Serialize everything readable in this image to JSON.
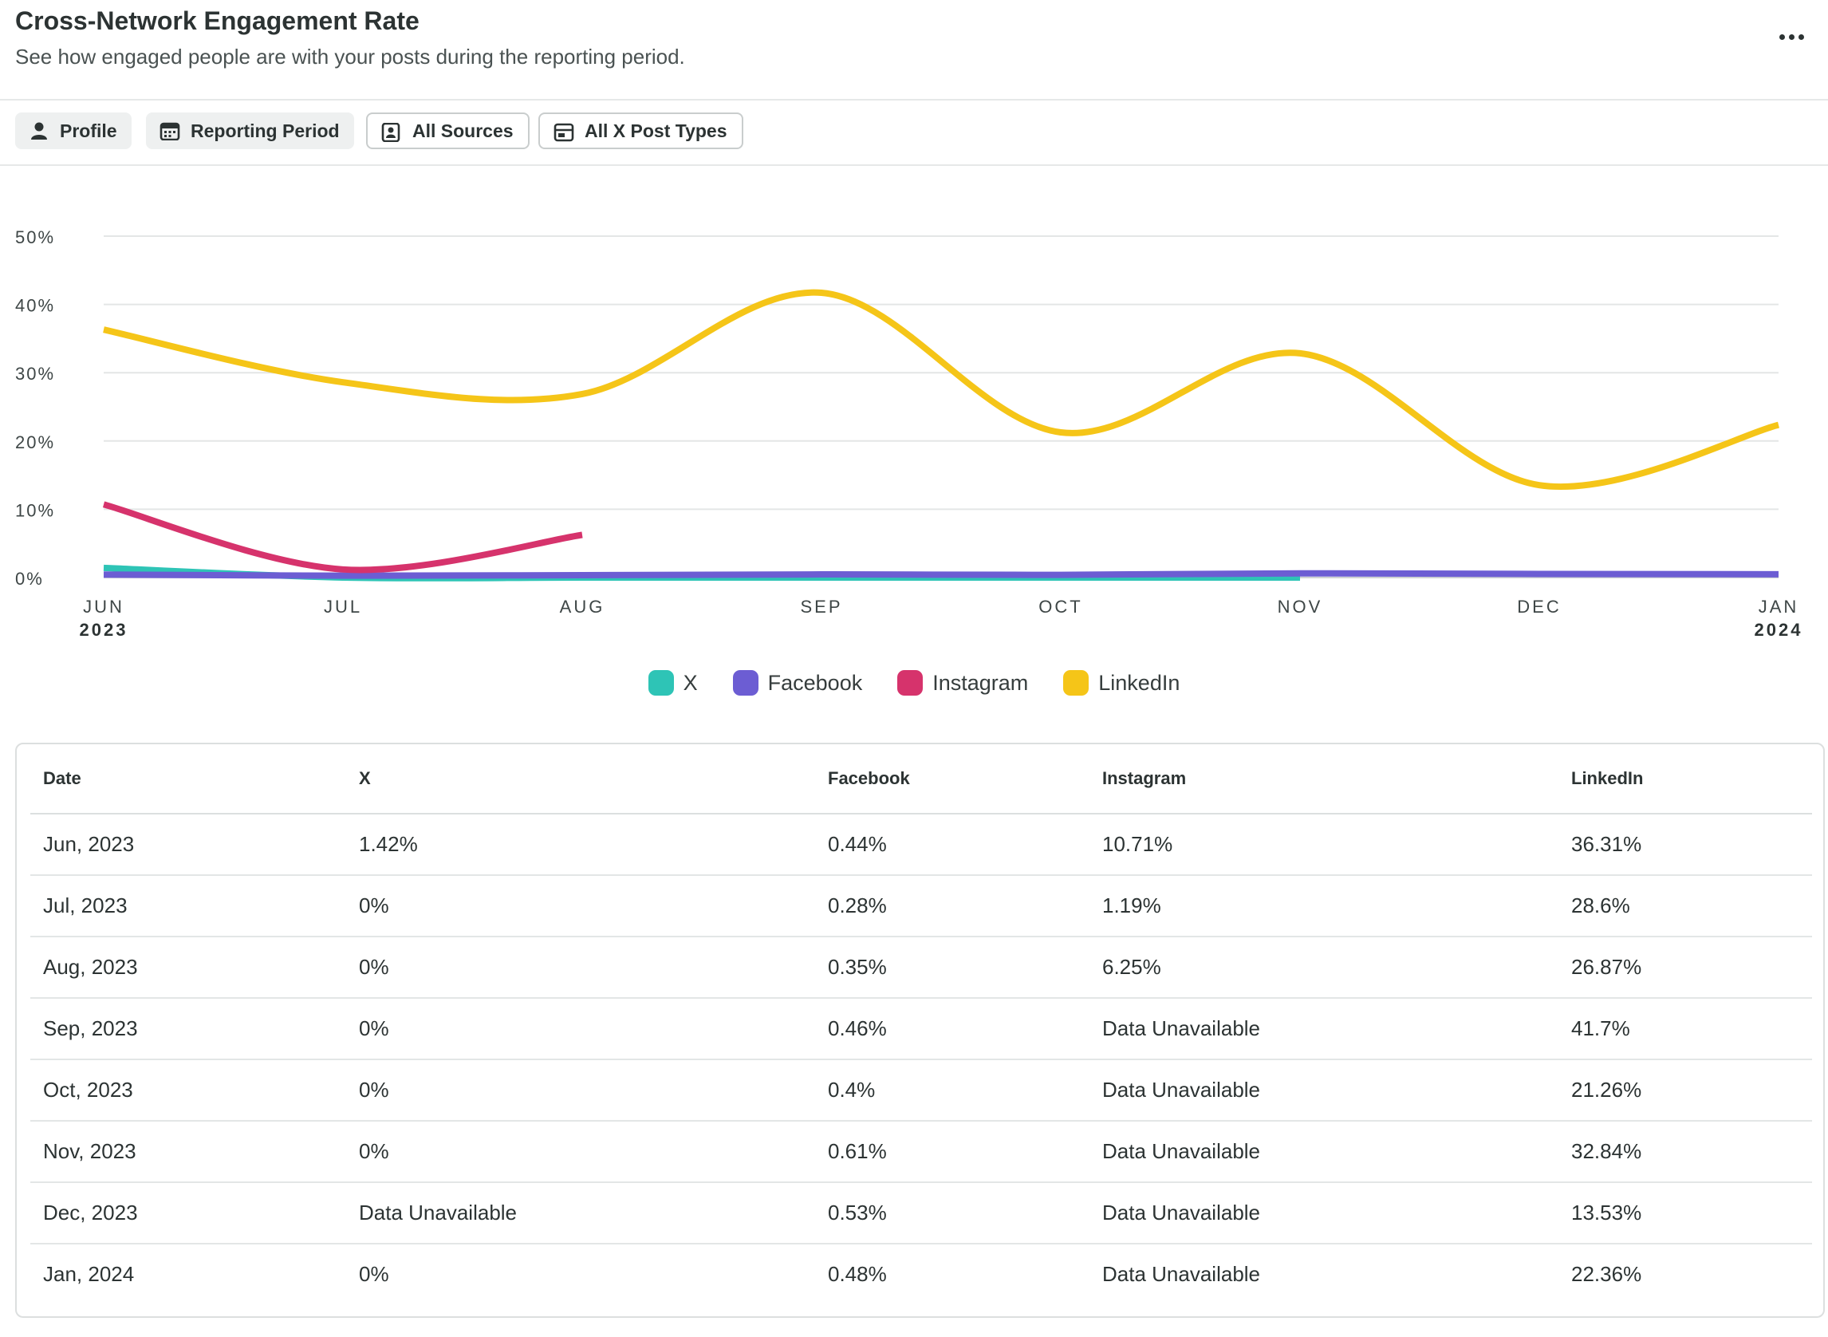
{
  "header": {
    "title": "Cross-Network Engagement Rate",
    "subtitle": "See how engaged people are with your posts during the reporting period."
  },
  "filters": [
    {
      "label": "Profile",
      "icon": "person-icon",
      "style": "filled"
    },
    {
      "label": "Reporting Period",
      "icon": "calendar-icon",
      "style": "filled"
    },
    {
      "label": "All Sources",
      "icon": "contact-card-icon",
      "style": "outline"
    },
    {
      "label": "All X Post Types",
      "icon": "post-type-icon",
      "style": "outline"
    }
  ],
  "chart_data": {
    "type": "line",
    "title": "Cross-Network Engagement Rate",
    "categories": [
      "JUN",
      "JUL",
      "AUG",
      "SEP",
      "OCT",
      "NOV",
      "DEC",
      "JAN"
    ],
    "category_years": [
      "2023",
      "",
      "",
      "",
      "",
      "",
      "",
      "2024"
    ],
    "ylim": [
      0,
      50
    ],
    "yticks": [
      0,
      10,
      20,
      30,
      40,
      50
    ],
    "ytick_labels": [
      "0%",
      "10%",
      "20%",
      "30%",
      "40%",
      "50%"
    ],
    "grid": true,
    "legend_position": "bottom-center",
    "series": [
      {
        "name": "X",
        "color": "#2ec4b6",
        "values": [
          1.42,
          0,
          0,
          0,
          0,
          0,
          null,
          0
        ]
      },
      {
        "name": "Facebook",
        "color": "#6c5dd3",
        "values": [
          0.44,
          0.28,
          0.35,
          0.46,
          0.4,
          0.61,
          0.53,
          0.48
        ]
      },
      {
        "name": "Instagram",
        "color": "#d6336c",
        "values": [
          10.71,
          1.19,
          6.25,
          null,
          null,
          null,
          null,
          null
        ]
      },
      {
        "name": "LinkedIn",
        "color": "#f5c518",
        "values": [
          36.31,
          28.6,
          26.87,
          41.7,
          21.26,
          32.84,
          13.53,
          22.36
        ]
      }
    ]
  },
  "table": {
    "headers": [
      "Date",
      "X",
      "Facebook",
      "Instagram",
      "LinkedIn"
    ],
    "rows": [
      [
        "Jun, 2023",
        "1.42%",
        "0.44%",
        "10.71%",
        "36.31%"
      ],
      [
        "Jul, 2023",
        "0%",
        "0.28%",
        "1.19%",
        "28.6%"
      ],
      [
        "Aug, 2023",
        "0%",
        "0.35%",
        "6.25%",
        "26.87%"
      ],
      [
        "Sep, 2023",
        "0%",
        "0.46%",
        "Data Unavailable",
        "41.7%"
      ],
      [
        "Oct, 2023",
        "0%",
        "0.4%",
        "Data Unavailable",
        "21.26%"
      ],
      [
        "Nov, 2023",
        "0%",
        "0.61%",
        "Data Unavailable",
        "32.84%"
      ],
      [
        "Dec, 2023",
        "Data Unavailable",
        "0.53%",
        "Data Unavailable",
        "13.53%"
      ],
      [
        "Jan, 2024",
        "0%",
        "0.48%",
        "Data Unavailable",
        "22.36%"
      ]
    ]
  }
}
